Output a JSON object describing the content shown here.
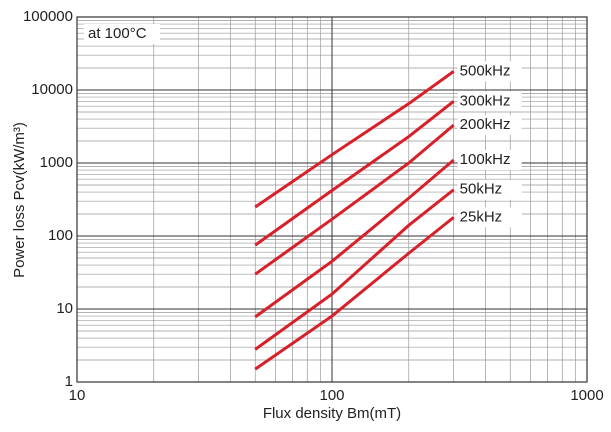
{
  "chart_data": {
    "type": "line",
    "annotation": "at 100°C",
    "xlabel": "Flux density Bm(mT)",
    "ylabel": "Power loss Pcv(kW/m³)",
    "x": [
      50,
      100,
      200,
      300
    ],
    "series": [
      {
        "name": "500kHz",
        "color": "#d8202a",
        "values": [
          250,
          1300,
          6500,
          18000
        ]
      },
      {
        "name": "300kHz",
        "color": "#d8202a",
        "values": [
          75,
          420,
          2300,
          7000
        ]
      },
      {
        "name": "200kHz",
        "color": "#d8202a",
        "values": [
          30,
          170,
          1000,
          3300
        ]
      },
      {
        "name": "100kHz",
        "color": "#d8202a",
        "values": [
          7.8,
          45,
          330,
          1100
        ]
      },
      {
        "name": "50kHz",
        "color": "#d8202a",
        "values": [
          2.8,
          16,
          140,
          430
        ]
      },
      {
        "name": "25kHz",
        "color": "#d8202a",
        "values": [
          1.5,
          8,
          58,
          180
        ]
      }
    ],
    "xlim": [
      10,
      1000
    ],
    "xticks": [
      10,
      100,
      1000
    ],
    "ylim": [
      1,
      100000
    ],
    "yticks": [
      1,
      10,
      100,
      1000,
      10000,
      100000
    ],
    "xscale": "log",
    "yscale": "log",
    "grid": true
  }
}
